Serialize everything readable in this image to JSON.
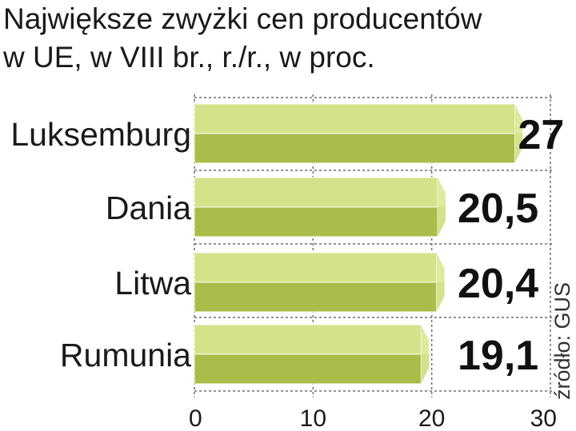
{
  "title_line1": "Największe zwyżki cen producentów",
  "title_line2": "w UE, w VIII br., r./r., w proc.",
  "source": "źródło: GUS",
  "colors": {
    "bar_top": "#d3e38a",
    "bar_bottom": "#a9be4a",
    "bar_end": "#dfea9e",
    "grid": "#6e6e6e"
  },
  "chart_data": {
    "type": "bar",
    "orientation": "horizontal",
    "categories": [
      "Luksemburg",
      "Dania",
      "Litwa",
      "Rumunia"
    ],
    "values": [
      27,
      20.5,
      20.4,
      19.1
    ],
    "value_labels": [
      "27",
      "20,5",
      "20,4",
      "19,1"
    ],
    "xlim": [
      0,
      30
    ],
    "ticks": [
      0,
      10,
      20,
      30
    ],
    "tick_labels": [
      "0",
      "10",
      "20",
      "30"
    ],
    "grid": true
  }
}
